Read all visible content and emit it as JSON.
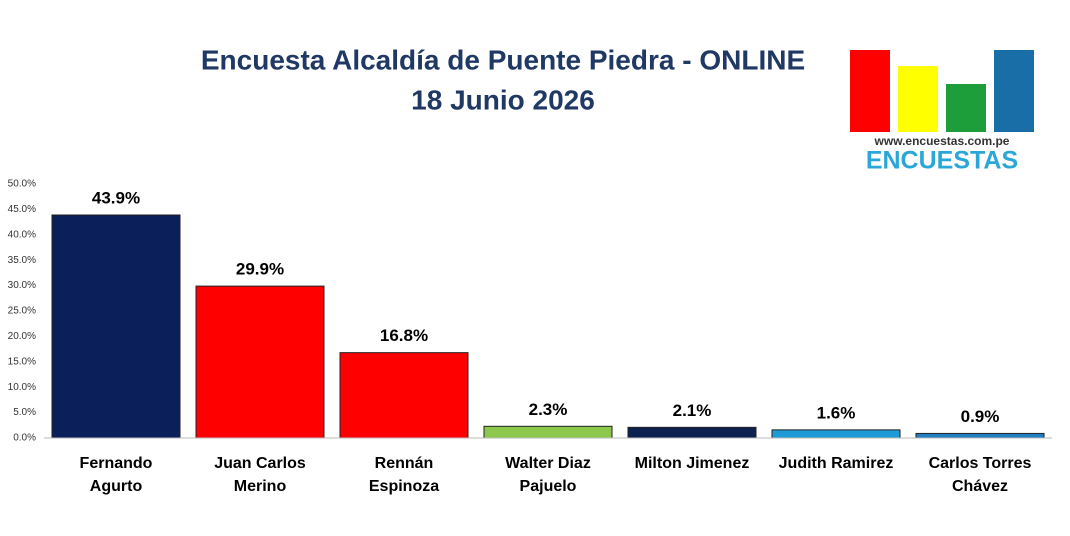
{
  "chart_data": {
    "type": "bar",
    "title": "Encuesta Alcaldía de Puente Piedra - ONLINE",
    "subtitle": "18 Junio 2026",
    "categories": [
      "Fernando Agurto",
      "Juan Carlos Merino",
      "Rennán Espinoza",
      "Walter Diaz Pajuelo",
      "Milton Jimenez",
      "Judith Ramirez",
      "Carlos Torres Chávez"
    ],
    "values": [
      43.9,
      29.9,
      16.8,
      2.3,
      2.1,
      1.6,
      0.9
    ],
    "value_labels": [
      "43.9%",
      "29.9%",
      "16.8%",
      "2.3%",
      "2.1%",
      "1.6%",
      "0.9%"
    ],
    "colors": [
      "#0b1f5a",
      "#ff0000",
      "#ff0000",
      "#8cc84b",
      "#0d2150",
      "#1e9ad6",
      "#1f7fc0"
    ],
    "ylim": [
      0,
      50
    ],
    "yticks": [
      {
        "value": 0,
        "label": "0.0%"
      },
      {
        "value": 5,
        "label": "5.0%"
      },
      {
        "value": 10,
        "label": "10.0%"
      },
      {
        "value": 15,
        "label": "15.0%"
      },
      {
        "value": 20,
        "label": "20.0%"
      },
      {
        "value": 25,
        "label": "25.0%"
      },
      {
        "value": 30,
        "label": "30.0%"
      },
      {
        "value": 35,
        "label": "35.0%"
      },
      {
        "value": 40,
        "label": "40.0%"
      },
      {
        "value": 45,
        "label": "45.0%"
      },
      {
        "value": 50,
        "label": "50.0%"
      }
    ],
    "grid": false
  },
  "logo": {
    "url": "www.encuestas.com.pe",
    "name": "ENCUESTAS"
  }
}
